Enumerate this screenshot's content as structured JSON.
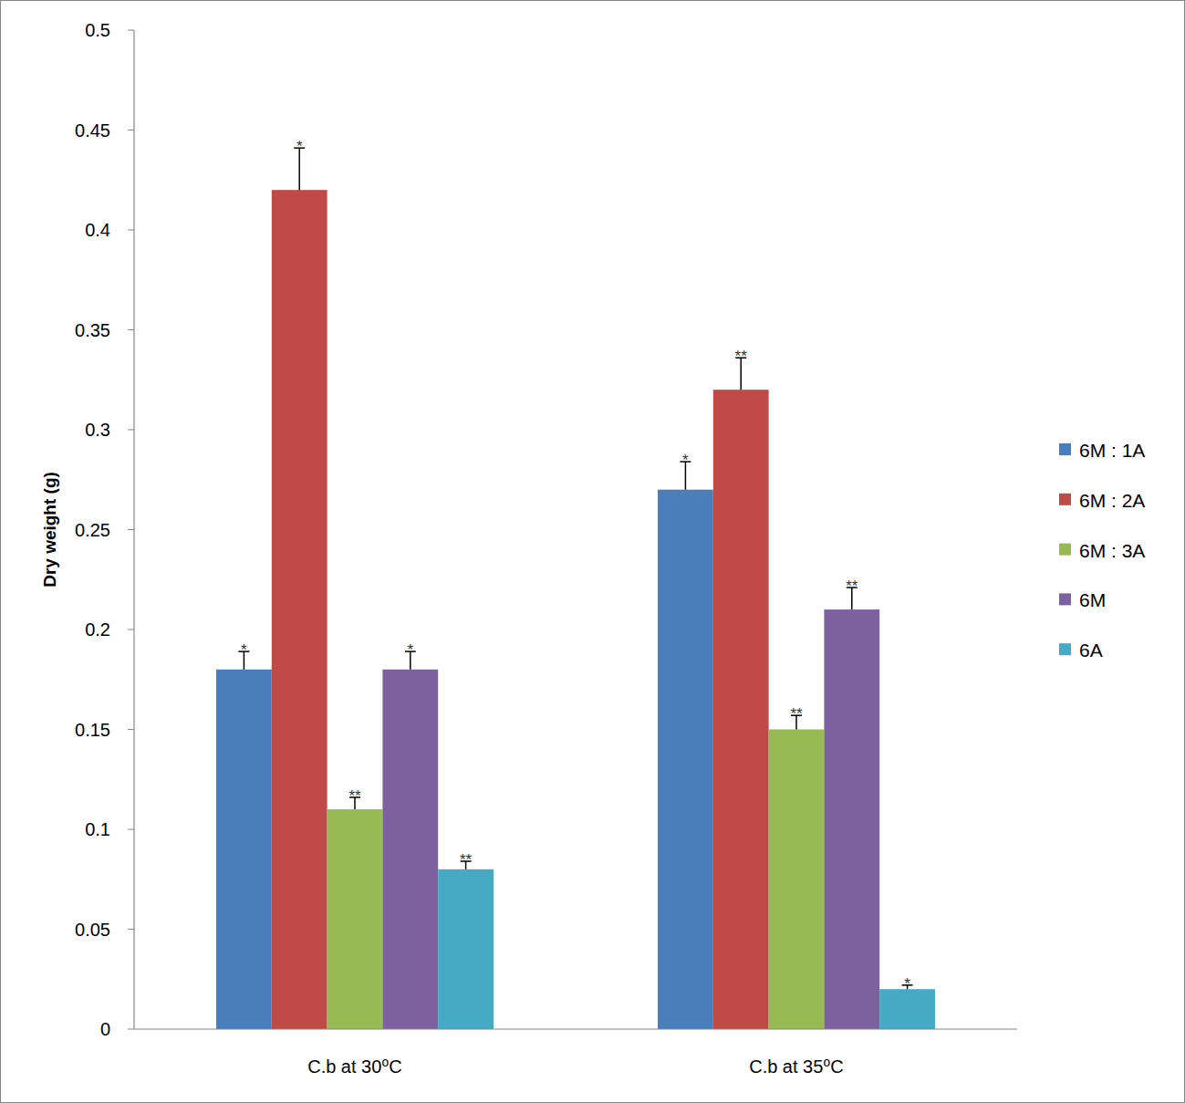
{
  "chart_data": {
    "type": "bar",
    "y_label": "Dry weight (g)",
    "categories": [
      "C.b at 30⁰C",
      "C.b at 35⁰C"
    ],
    "series": [
      {
        "name": "6M : 1A",
        "color": "#4a7ebb",
        "values": [
          0.18,
          0.27
        ],
        "errors": [
          0.009,
          0.014
        ],
        "significance": [
          "*",
          "*"
        ]
      },
      {
        "name": "6M : 2A",
        "color": "#be4b48",
        "values": [
          0.42,
          0.32
        ],
        "errors": [
          0.021,
          0.016
        ],
        "significance": [
          "*",
          "**"
        ]
      },
      {
        "name": "6M : 3A",
        "color": "#98b954",
        "values": [
          0.11,
          0.15
        ],
        "errors": [
          0.006,
          0.007
        ],
        "significance": [
          "**",
          "**"
        ]
      },
      {
        "name": "6M",
        "color": "#7d60a0",
        "values": [
          0.18,
          0.21
        ],
        "errors": [
          0.009,
          0.011
        ],
        "significance": [
          "*",
          "**"
        ]
      },
      {
        "name": "6A",
        "color": "#46aac5",
        "values": [
          0.08,
          0.02
        ],
        "errors": [
          0.004,
          0.002
        ],
        "significance": [
          "**",
          "*"
        ]
      }
    ],
    "ylim": [
      0,
      0.5
    ],
    "yticks": [
      0,
      0.05,
      0.1,
      0.15,
      0.2,
      0.25,
      0.3,
      0.35,
      0.4,
      0.45,
      0.5
    ],
    "grid": false,
    "legend": "right"
  }
}
